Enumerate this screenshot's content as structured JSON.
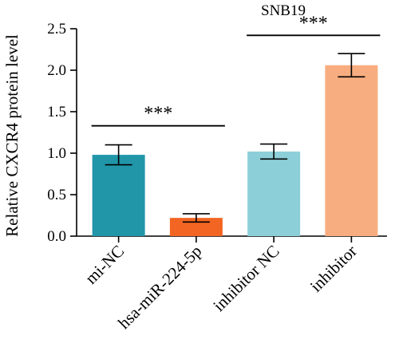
{
  "chart_data": {
    "type": "bar",
    "title": "SNB19",
    "ylabel": "Relative CXCR4 protein level",
    "xlabel": "",
    "ylim": [
      0,
      2.5
    ],
    "yticks": [
      "0.0",
      "0.5",
      "1.0",
      "1.5",
      "2.0",
      "2.5"
    ],
    "categories": [
      "mi-NC",
      "hsa-miR-224-5p",
      "inhibitor NC",
      "inhibitor"
    ],
    "values": [
      0.98,
      0.22,
      1.02,
      2.06
    ],
    "errors": [
      0.12,
      0.05,
      0.09,
      0.14
    ],
    "colors": [
      "#2196a9",
      "#f26522",
      "#8dcfd9",
      "#f8ad80"
    ],
    "significance": [
      {
        "from": 0,
        "to": 1,
        "y": 1.33,
        "label": "***"
      },
      {
        "from": 2,
        "to": 3,
        "y": 2.42,
        "label": "***"
      }
    ],
    "grid": false,
    "legend": "none"
  }
}
